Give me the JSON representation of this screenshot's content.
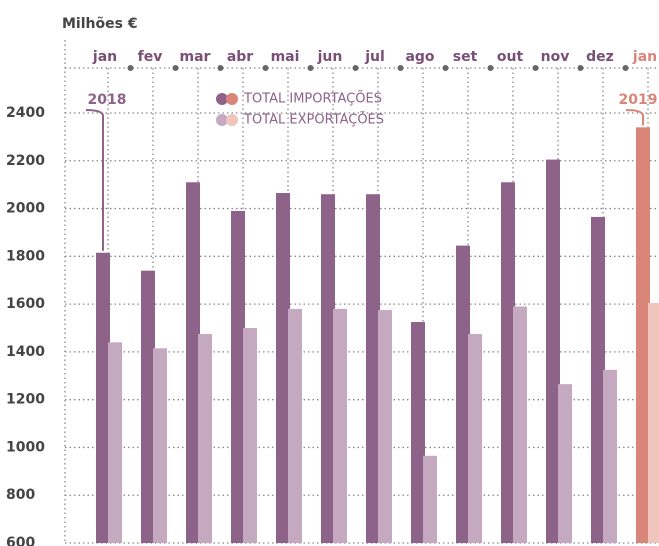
{
  "chart_data": {
    "type": "bar",
    "y_label": "Milhões €",
    "categories": [
      "jan",
      "fev",
      "mar",
      "abr",
      "mai",
      "jun",
      "jul",
      "ago",
      "set",
      "out",
      "nov",
      "dez",
      "jan"
    ],
    "years": [
      "2018",
      "2019"
    ],
    "series": [
      {
        "name": "TOTAL IMPORTAÇÕES",
        "color": "#8e6389",
        "highlight_color": "#d9857a",
        "values": [
          1815,
          1740,
          2110,
          1990,
          2065,
          2060,
          2060,
          1525,
          1845,
          2110,
          2205,
          1965,
          2340
        ]
      },
      {
        "name": "TOTAL EXPORTAÇÕES",
        "color": "#c4a9c1",
        "highlight_color": "#f0c5bb",
        "values": [
          1440,
          1415,
          1475,
          1500,
          1580,
          1580,
          1575,
          965,
          1475,
          1590,
          1265,
          1325,
          1605
        ]
      }
    ],
    "ylim": [
      600,
      2400
    ],
    "yticks": [
      600,
      800,
      1000,
      1200,
      1400,
      1600,
      1800,
      2000,
      2200,
      2400
    ],
    "grid": true
  }
}
